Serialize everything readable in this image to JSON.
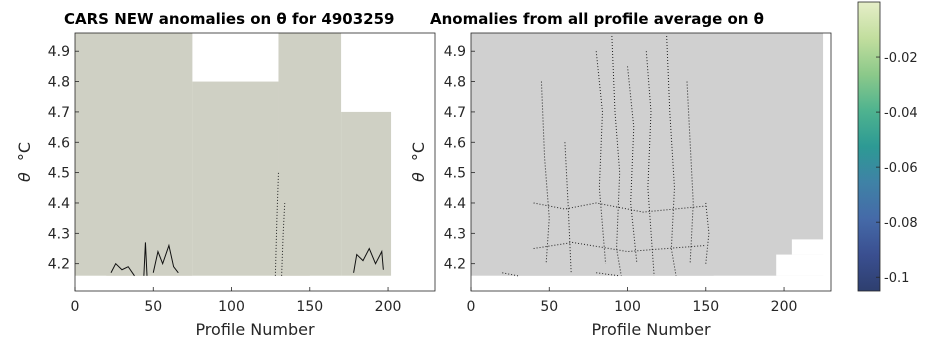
{
  "chart_data": [
    {
      "type": "heatmap",
      "title": "CARS NEW anomalies on θ for 4903259",
      "xlabel": "Profile Number",
      "ylabel_symbol": "θ",
      "ylabel_unit": "°C",
      "xlim": [
        0,
        230
      ],
      "ylim": [
        4.11,
        4.96
      ],
      "xticks": [
        0,
        50,
        100,
        150,
        200
      ],
      "yticks": [
        4.2,
        4.3,
        4.4,
        4.5,
        4.6,
        4.7,
        4.8,
        4.9
      ],
      "field_color": "#cfd0c4",
      "coverage": [
        {
          "x0": 0,
          "x1": 75,
          "y0": 4.16,
          "y1": 4.96
        },
        {
          "x0": 75,
          "x1": 130,
          "y0": 4.16,
          "y1": 4.8
        },
        {
          "x0": 130,
          "x1": 170,
          "y0": 4.16,
          "y1": 4.96
        },
        {
          "x0": 170,
          "x1": 202,
          "y0": 4.16,
          "y1": 4.7
        }
      ],
      "gaps": [
        {
          "x0": 0,
          "x1": 20,
          "y0": 4.11,
          "y1": 4.16
        },
        {
          "x0": 75,
          "x1": 130,
          "y0": 4.11,
          "y1": 4.16
        },
        {
          "x0": 150,
          "x1": 230,
          "y0": 4.11,
          "y1": 4.16
        },
        {
          "x0": 202,
          "x1": 230,
          "y0": 4.16,
          "y1": 4.96
        }
      ],
      "contours_solid": [
        [
          [
            23,
            4.17
          ],
          [
            26,
            4.2
          ],
          [
            30,
            4.18
          ],
          [
            34,
            4.19
          ],
          [
            38,
            4.16
          ]
        ],
        [
          [
            44,
            4.16
          ],
          [
            45,
            4.27
          ],
          [
            46,
            4.16
          ]
        ],
        [
          [
            50,
            4.17
          ],
          [
            53,
            4.24
          ],
          [
            56,
            4.2
          ],
          [
            60,
            4.26
          ],
          [
            63,
            4.19
          ],
          [
            66,
            4.17
          ]
        ],
        [
          [
            178,
            4.17
          ],
          [
            180,
            4.23
          ],
          [
            184,
            4.21
          ],
          [
            188,
            4.25
          ],
          [
            192,
            4.2
          ],
          [
            196,
            4.24
          ],
          [
            197,
            4.18
          ]
        ]
      ],
      "contours_dotted": [
        [
          [
            128,
            4.16
          ],
          [
            129,
            4.35
          ],
          [
            130,
            4.5
          ]
        ],
        [
          [
            132,
            4.16
          ],
          [
            133,
            4.3
          ],
          [
            134,
            4.4
          ]
        ]
      ]
    },
    {
      "type": "heatmap",
      "title": "Anomalies from all profile average on θ",
      "xlabel": "Profile Number",
      "ylabel_symbol": "θ",
      "ylabel_unit": "°C",
      "xlim": [
        0,
        230
      ],
      "ylim": [
        4.11,
        4.96
      ],
      "xticks": [
        0,
        50,
        100,
        150,
        200
      ],
      "yticks": [
        4.2,
        4.3,
        4.4,
        4.5,
        4.6,
        4.7,
        4.8,
        4.9
      ],
      "field_color": "#d0d0d0",
      "coverage": [
        {
          "x0": 0,
          "x1": 225,
          "y0": 4.16,
          "y1": 4.96
        }
      ],
      "gaps": [
        {
          "x0": 0,
          "x1": 20,
          "y0": 4.11,
          "y1": 4.16
        },
        {
          "x0": 155,
          "x1": 230,
          "y0": 4.11,
          "y1": 4.16
        },
        {
          "x0": 195,
          "x1": 230,
          "y0": 4.16,
          "y1": 4.23
        },
        {
          "x0": 205,
          "x1": 230,
          "y0": 4.23,
          "y1": 4.28
        },
        {
          "x0": 225,
          "x1": 230,
          "y0": 4.28,
          "y1": 4.96
        }
      ],
      "contours_dotted": [
        [
          [
            45,
            4.8
          ],
          [
            47,
            4.55
          ],
          [
            50,
            4.35
          ],
          [
            48,
            4.2
          ]
        ],
        [
          [
            60,
            4.6
          ],
          [
            62,
            4.4
          ],
          [
            64,
            4.17
          ]
        ],
        [
          [
            80,
            4.9
          ],
          [
            84,
            4.7
          ],
          [
            82,
            4.45
          ],
          [
            86,
            4.2
          ]
        ],
        [
          [
            90,
            4.95
          ],
          [
            92,
            4.7
          ],
          [
            95,
            4.5
          ],
          [
            93,
            4.25
          ],
          [
            96,
            4.16
          ]
        ],
        [
          [
            100,
            4.85
          ],
          [
            104,
            4.65
          ],
          [
            102,
            4.4
          ],
          [
            106,
            4.2
          ]
        ],
        [
          [
            112,
            4.9
          ],
          [
            115,
            4.7
          ],
          [
            113,
            4.45
          ],
          [
            117,
            4.16
          ]
        ],
        [
          [
            125,
            4.95
          ],
          [
            127,
            4.7
          ],
          [
            130,
            4.45
          ],
          [
            128,
            4.25
          ],
          [
            131,
            4.16
          ]
        ],
        [
          [
            138,
            4.8
          ],
          [
            140,
            4.6
          ],
          [
            142,
            4.4
          ],
          [
            140,
            4.2
          ]
        ],
        [
          [
            150,
            4.4
          ],
          [
            152,
            4.3
          ],
          [
            150,
            4.2
          ]
        ],
        [
          [
            40,
            4.4
          ],
          [
            60,
            4.38
          ],
          [
            80,
            4.4
          ],
          [
            110,
            4.37
          ],
          [
            150,
            4.39
          ]
        ],
        [
          [
            40,
            4.25
          ],
          [
            65,
            4.27
          ],
          [
            100,
            4.24
          ],
          [
            150,
            4.26
          ]
        ],
        [
          [
            20,
            4.17
          ],
          [
            30,
            4.16
          ]
        ],
        [
          [
            80,
            4.17
          ],
          [
            95,
            4.16
          ]
        ]
      ]
    }
  ],
  "colorbar": {
    "ticks": [
      "-0.02",
      "-0.04",
      "-0.06",
      "-0.08",
      "-0.1"
    ],
    "values": [
      -0.02,
      -0.04,
      -0.06,
      -0.08,
      -0.1
    ],
    "range": [
      -0.105,
      0.0
    ],
    "colormap": [
      "#e6eec8",
      "#c2de9e",
      "#8cc98a",
      "#4fb38f",
      "#2d9a94",
      "#3f82a6",
      "#456aa8",
      "#3a4f90",
      "#2e3f6f"
    ]
  }
}
